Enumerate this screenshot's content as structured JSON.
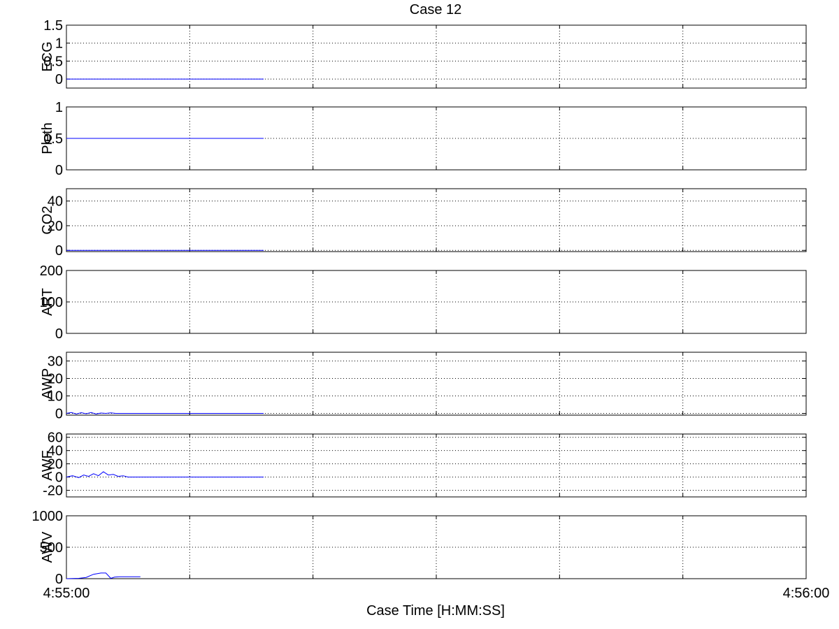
{
  "figure": {
    "title": "Case 12",
    "xlabel": "Case Time [H:MM:SS]",
    "x_tick_labels": [
      "4:55:00",
      "4:56:00"
    ]
  },
  "chart_data": [
    {
      "type": "line",
      "ylabel": "ECG",
      "ylim": [
        -0.25,
        1.5
      ],
      "yticks": [
        0,
        0.5,
        1,
        1.5
      ],
      "ytick_labels": [
        "0",
        "0.5",
        "1",
        "1.5"
      ],
      "grid": true,
      "xlim": [
        0,
        60
      ],
      "series": [
        {
          "color": "#0000ff",
          "x": [
            0,
            16
          ],
          "y": [
            0,
            0
          ]
        }
      ]
    },
    {
      "type": "line",
      "ylabel": "Pleth",
      "ylim": [
        0,
        1
      ],
      "yticks": [
        0,
        0.5,
        1
      ],
      "ytick_labels": [
        "0",
        "0.5",
        "1"
      ],
      "grid": true,
      "xlim": [
        0,
        60
      ],
      "series": [
        {
          "color": "#0000ff",
          "x": [
            0,
            16
          ],
          "y": [
            0.5,
            0.5
          ]
        }
      ]
    },
    {
      "type": "line",
      "ylabel": "CO2",
      "ylim": [
        -1,
        50
      ],
      "yticks": [
        0,
        20,
        40
      ],
      "ytick_labels": [
        "0",
        "20",
        "40"
      ],
      "grid": true,
      "xlim": [
        0,
        60
      ],
      "series": [
        {
          "color": "#0000ff",
          "x": [
            0,
            16
          ],
          "y": [
            0,
            0
          ]
        }
      ]
    },
    {
      "type": "line",
      "ylabel": "ART",
      "ylim": [
        0,
        200
      ],
      "yticks": [
        0,
        100,
        200
      ],
      "ytick_labels": [
        "0",
        "100",
        "200"
      ],
      "grid": true,
      "xlim": [
        0,
        60
      ],
      "series": []
    },
    {
      "type": "line",
      "ylabel": "AWP",
      "ylim": [
        -1,
        35
      ],
      "yticks": [
        0,
        10,
        20,
        30
      ],
      "ytick_labels": [
        "0",
        "10",
        "20",
        "30"
      ],
      "grid": true,
      "xlim": [
        0,
        60
      ],
      "series": [
        {
          "color": "#0000ff",
          "x": [
            0,
            0.4,
            0.8,
            1.2,
            1.6,
            2.0,
            2.4,
            2.8,
            3.2,
            3.6,
            4.0,
            4.4,
            16
          ],
          "y": [
            0,
            0.5,
            -0.3,
            0.4,
            -0.2,
            0.5,
            -0.3,
            0.2,
            0,
            0.3,
            0,
            0,
            0
          ]
        }
      ]
    },
    {
      "type": "line",
      "ylabel": "AWF",
      "ylim": [
        -30,
        65
      ],
      "yticks": [
        -20,
        0,
        20,
        40,
        60
      ],
      "ytick_labels": [
        "-20",
        "0",
        "20",
        "40",
        "60"
      ],
      "grid": true,
      "xlim": [
        0,
        60
      ],
      "series": [
        {
          "color": "#0000ff",
          "x": [
            0,
            0.5,
            1.0,
            1.4,
            1.8,
            2.2,
            2.6,
            3.0,
            3.4,
            3.8,
            4.2,
            4.6,
            5.0,
            16
          ],
          "y": [
            0,
            2,
            -1,
            3,
            1,
            5,
            2,
            8,
            3,
            4,
            1,
            2,
            0,
            0
          ]
        }
      ]
    },
    {
      "type": "line",
      "ylabel": "AWV",
      "ylim": [
        0,
        1000
      ],
      "yticks": [
        0,
        500,
        1000
      ],
      "ytick_labels": [
        "0",
        "500",
        "1000"
      ],
      "grid": true,
      "xlim": [
        0,
        60
      ],
      "series": [
        {
          "color": "#0000ff",
          "x": [
            0,
            1.0,
            1.6,
            2.2,
            2.8,
            3.2,
            3.6,
            3.9,
            4.3,
            4.8,
            6.0
          ],
          "y": [
            0,
            5,
            20,
            70,
            90,
            90,
            5,
            25,
            30,
            30,
            30
          ]
        }
      ]
    }
  ]
}
